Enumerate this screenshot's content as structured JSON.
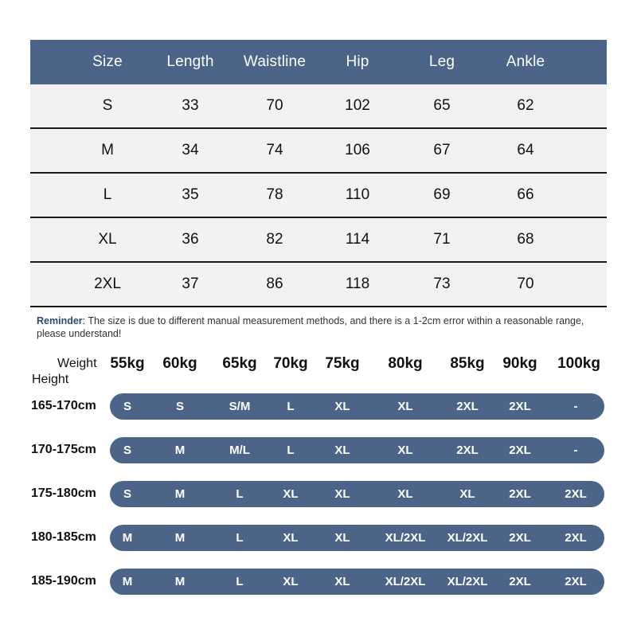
{
  "size_table": {
    "headers": [
      "Size",
      "Length",
      "Waistline",
      "Hip",
      "Leg",
      "Ankle"
    ],
    "rows": [
      [
        "S",
        "33",
        "70",
        "102",
        "65",
        "62"
      ],
      [
        "M",
        "34",
        "74",
        "106",
        "67",
        "64"
      ],
      [
        "L",
        "35",
        "78",
        "110",
        "69",
        "66"
      ],
      [
        "XL",
        "36",
        "82",
        "114",
        "71",
        "68"
      ],
      [
        "2XL",
        "37",
        "86",
        "118",
        "73",
        "70"
      ]
    ]
  },
  "reminder": {
    "label": "Reminder",
    "text": ": The size is due to different manual measurement methods, and there is a 1-2cm error within a reasonable range, please understand!"
  },
  "weight_height_chart": {
    "weight_label": "Weight",
    "height_label": "Height",
    "weights": [
      "55kg",
      "60kg",
      "65kg",
      "70kg",
      "75kg",
      "80kg",
      "85kg",
      "90kg",
      "100kg"
    ],
    "rows": [
      {
        "height": "165-170cm",
        "sizes": [
          "S",
          "S",
          "S/M",
          "L",
          "XL",
          "XL",
          "2XL",
          "2XL",
          "-"
        ]
      },
      {
        "height": "170-175cm",
        "sizes": [
          "S",
          "M",
          "M/L",
          "L",
          "XL",
          "XL",
          "2XL",
          "2XL",
          "-"
        ]
      },
      {
        "height": "175-180cm",
        "sizes": [
          "S",
          "M",
          "L",
          "XL",
          "XL",
          "XL",
          "XL",
          "2XL",
          "2XL"
        ]
      },
      {
        "height": "180-185cm",
        "sizes": [
          "M",
          "M",
          "L",
          "XL",
          "XL",
          "XL/2XL",
          "XL/2XL",
          "2XL",
          "2XL"
        ]
      },
      {
        "height": "185-190cm",
        "sizes": [
          "M",
          "M",
          "L",
          "XL",
          "XL",
          "XL/2XL",
          "XL/2XL",
          "2XL",
          "2XL"
        ]
      }
    ]
  },
  "colors": {
    "header_bg": "#4b6488",
    "row_bg": "#f2f2f2",
    "pill_bg": "#4b6488",
    "reminder_label": "#2e4a70"
  }
}
